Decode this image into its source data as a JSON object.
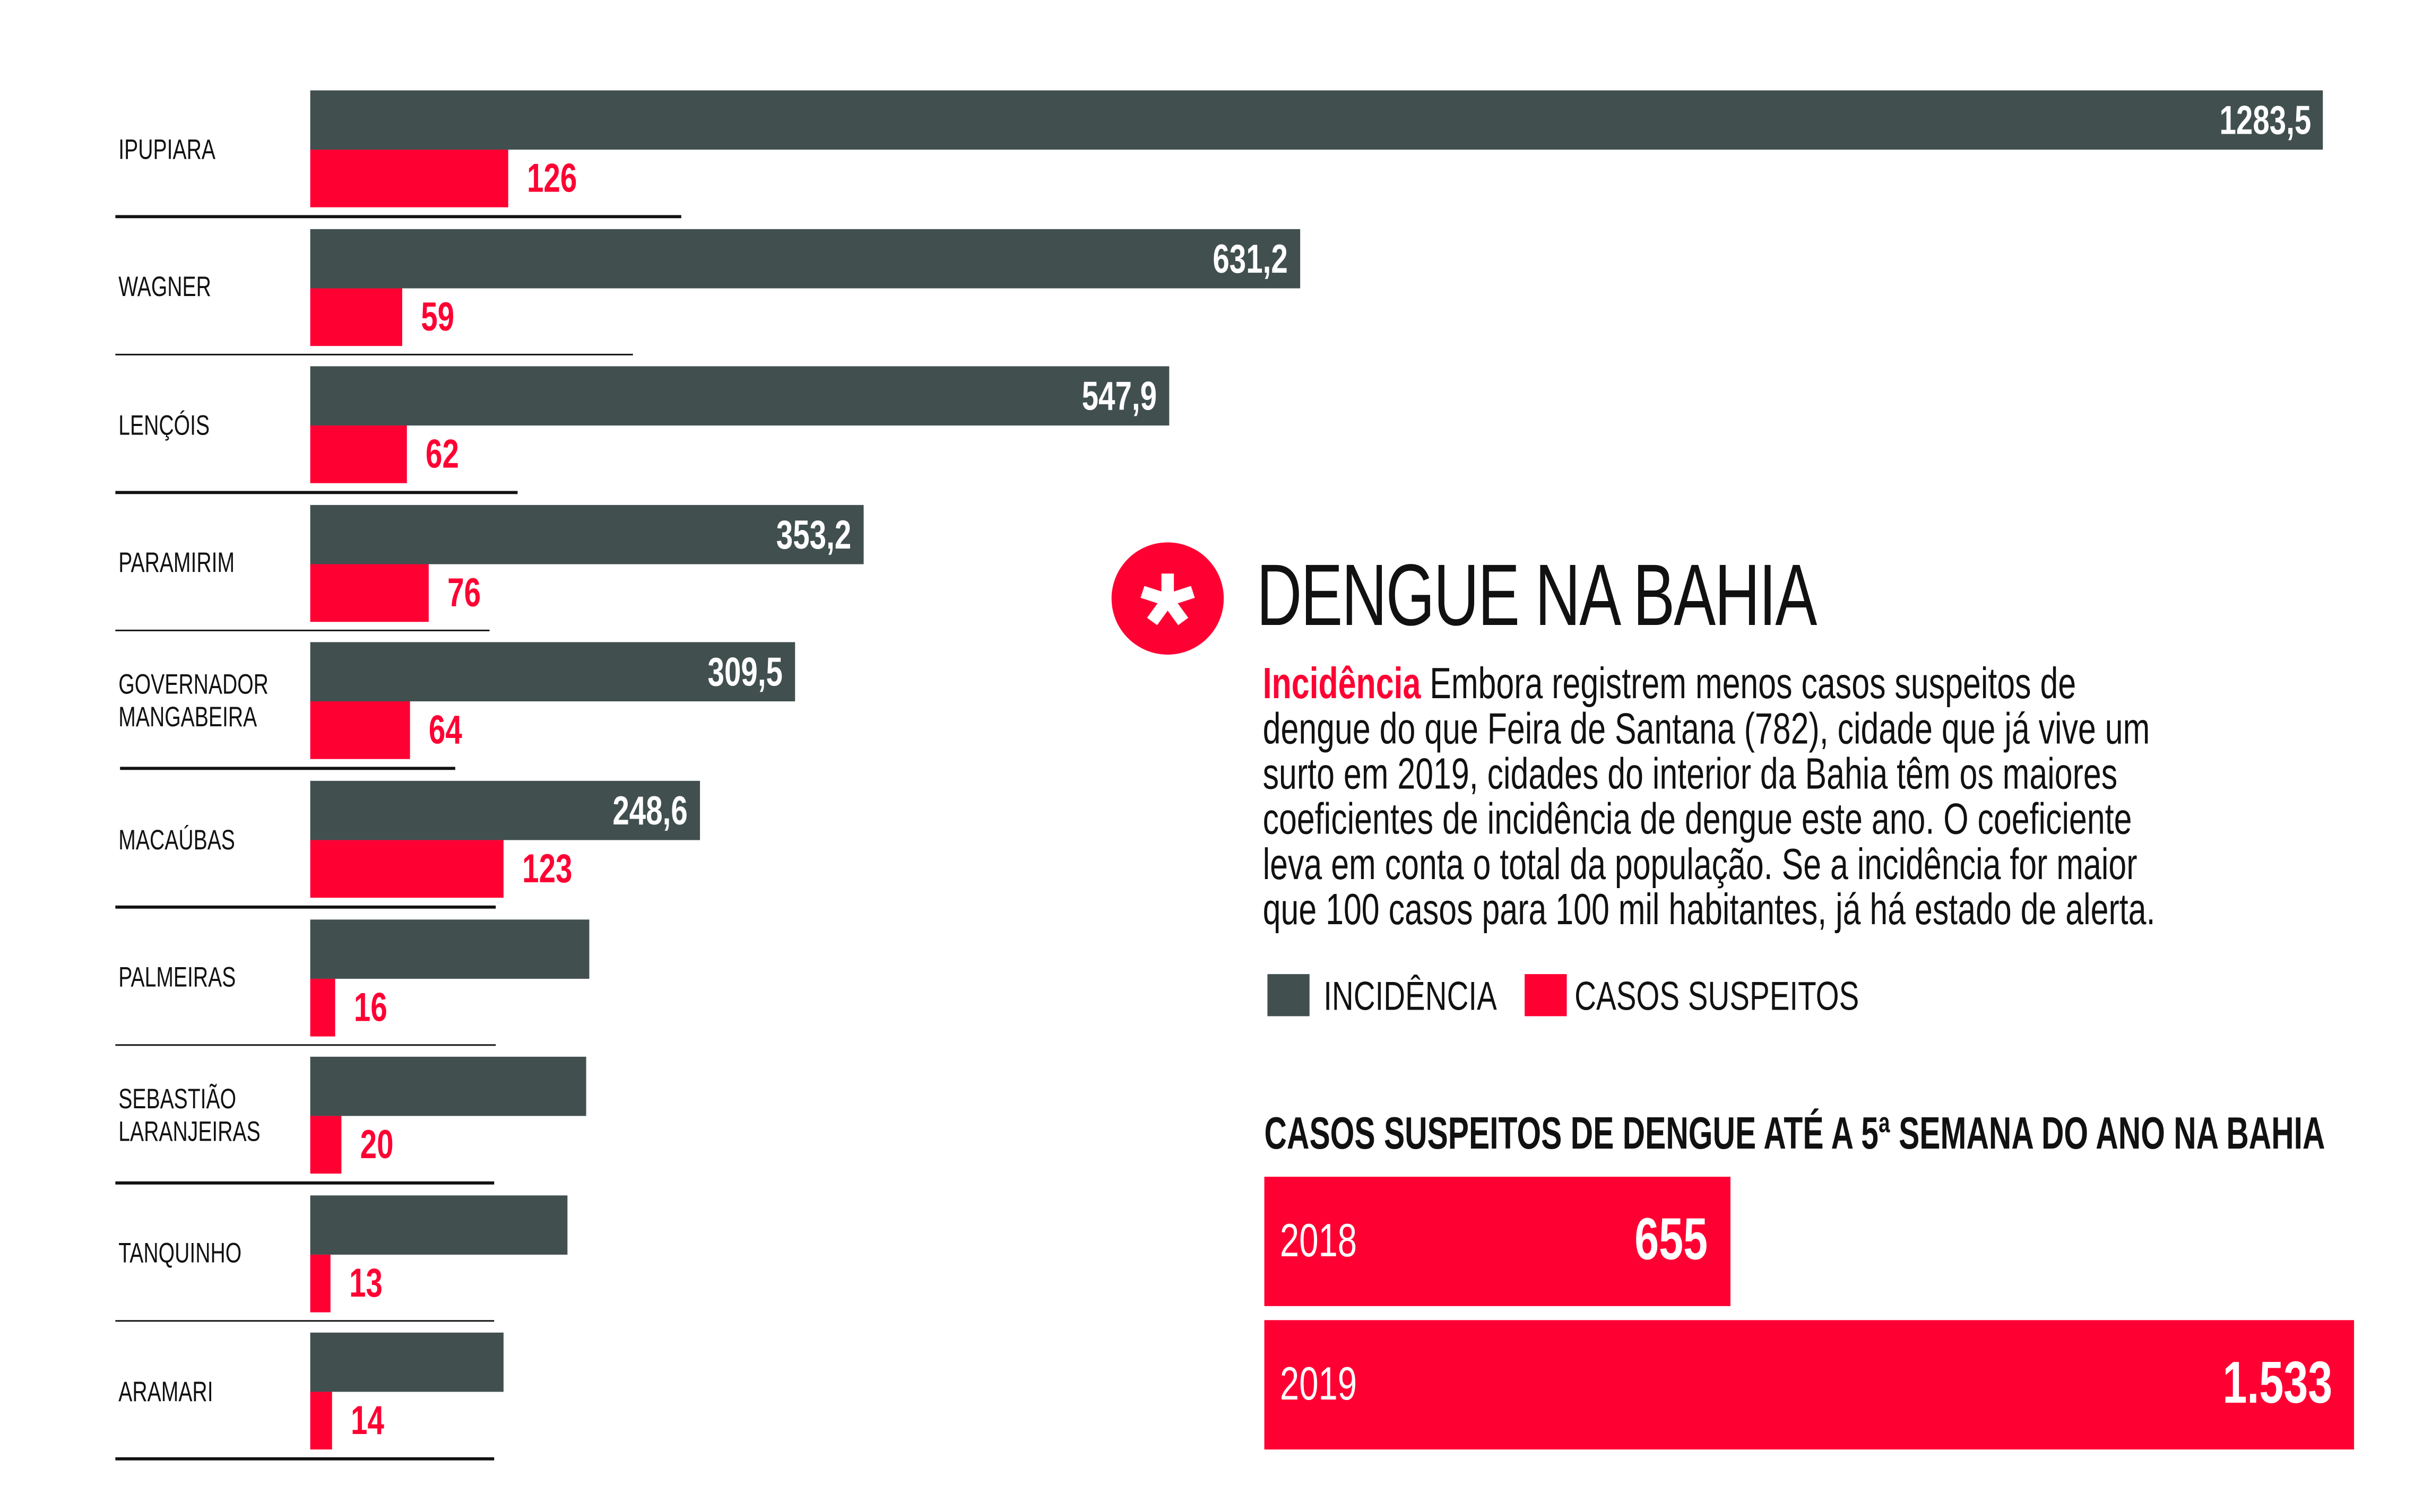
{
  "chart_data": [
    {
      "type": "bar",
      "orientation": "horizontal",
      "categories": [
        "IPUPIARA",
        "WAGNER",
        "LENÇÓIS",
        "PARAMIRIM",
        "GOVERNADOR MANGABEIRA",
        "MACAÚBAS",
        "PALMEIRAS",
        "SEBASTIÃO LARANJEIRAS",
        "TANQUINHO",
        "ARAMARI"
      ],
      "category_lines": [
        [
          "IPUPIARA"
        ],
        [
          "WAGNER"
        ],
        [
          "LENÇÓIS"
        ],
        [
          "PARAMIRIM"
        ],
        [
          "GOVERNADOR",
          "MANGABEIRA"
        ],
        [
          "MACAÚBAS"
        ],
        [
          "PALMEIRAS"
        ],
        [
          "SEBASTIÃO",
          "LARANJEIRAS"
        ],
        [
          "TANQUINHO"
        ],
        [
          "ARAMARI"
        ]
      ],
      "series": [
        {
          "name": "INCIDÊNCIA",
          "color": "#414f4f",
          "values": [
            1283.5,
            631.2,
            547.9,
            353.2,
            309.5,
            248.6,
            178,
            176,
            164,
            123
          ],
          "labels": [
            "1283,5",
            "631,2",
            "547,9",
            "353,2",
            "309,5",
            "248,6",
            "",
            "",
            "",
            ""
          ]
        },
        {
          "name": "CASOS SUSPEITOS",
          "color": "#ff0033",
          "values": [
            126,
            59,
            62,
            76,
            64,
            123,
            16,
            20,
            13,
            14
          ],
          "labels": [
            "126",
            "59",
            "62",
            "76",
            "64",
            "123",
            "16",
            "20",
            "13",
            "14"
          ]
        }
      ],
      "legend_placement": "right",
      "grid": false
    },
    {
      "type": "bar",
      "orientation": "horizontal",
      "title": "CASOS SUSPEITOS DE DENGUE ATÉ A 5ª SEMANA DO ANO NA BAHIA",
      "categories": [
        "2018",
        "2019"
      ],
      "values": [
        655,
        1533
      ],
      "labels": [
        "655",
        "1.533"
      ],
      "color": "#ff0033"
    }
  ],
  "header": {
    "icon": "asterisk-icon",
    "title": "DENGUE NA BAHIA",
    "accent": "#ff0033"
  },
  "intro": {
    "lead": "Incidência",
    "lines": [
      "Embora registrem menos casos suspeitos de",
      "dengue do que Feira de Santana (782), cidade que já vive um",
      "surto em 2019, cidades do interior da Bahia têm os maiores",
      "coeficientes de incidência de dengue este ano. O coeficiente",
      "leva em conta o total da população. Se a incidência for maior",
      "que 100 casos para 100 mil habitantes, já há estado de alerta."
    ]
  },
  "legend": {
    "incidencia": "INCIDÊNCIA",
    "casos": "CASOS SUSPEITOS"
  }
}
